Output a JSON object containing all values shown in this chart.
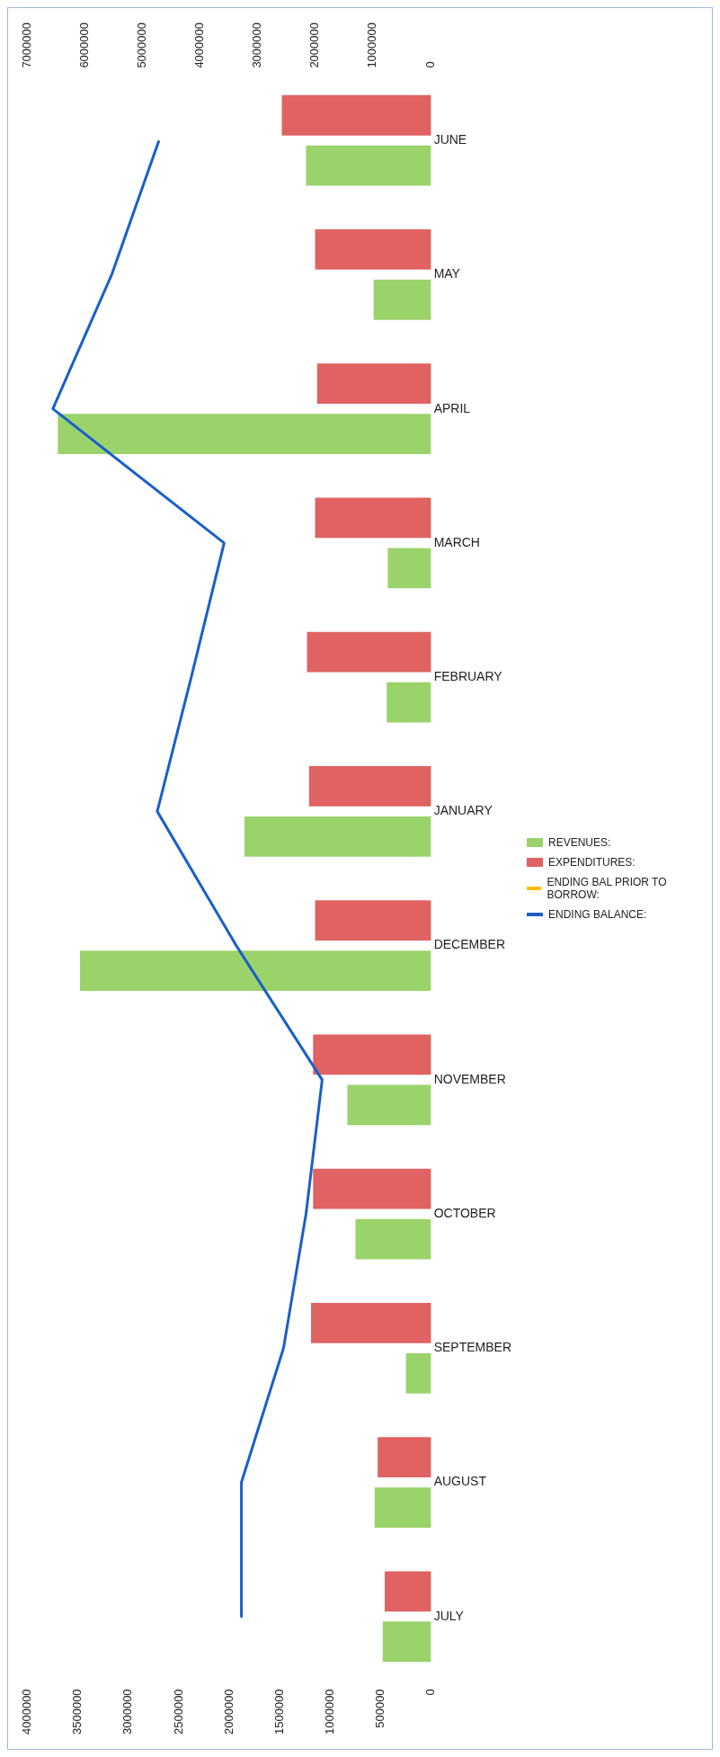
{
  "chart_data": {
    "type": "bar",
    "orientation": "horizontal",
    "categories": [
      "JUNE",
      "MAY",
      "APRIL",
      "MARCH",
      "FEBRUARY",
      "JANUARY",
      "DECEMBER",
      "NOVEMBER",
      "OCTOBER",
      "SEPTEMBER",
      "AUGUST",
      "JULY"
    ],
    "series": [
      {
        "name": "REVENUES:",
        "color": "#9bd36b",
        "values": [
          1240000,
          570000,
          3700000,
          430000,
          440000,
          1850000,
          3480000,
          830000,
          750000,
          250000,
          560000,
          480000
        ]
      },
      {
        "name": "EXPENDITURES:",
        "color": "#e06262",
        "values": [
          1480000,
          1150000,
          1130000,
          1150000,
          1230000,
          1210000,
          1150000,
          1170000,
          1170000,
          1190000,
          530000,
          460000
        ]
      },
      {
        "name": "ENDING BAL PRIOR TO BORROW:",
        "type": "line",
        "axis": "x2",
        "color": "#ffc000",
        "values": [
          null,
          null,
          null,
          null,
          null,
          null,
          null,
          null,
          null,
          null,
          null,
          null
        ]
      },
      {
        "name": "ENDING BALANCE:",
        "type": "line",
        "axis": "x2",
        "color": "#1a5fc9",
        "values": [
          4720000,
          5540000,
          6560000,
          3590000,
          4160000,
          4750000,
          3380000,
          1890000,
          2170000,
          2560000,
          3290000,
          3290000
        ]
      }
    ],
    "xlim": [
      4000000,
      0
    ],
    "xticks": [
      4000000,
      3500000,
      3000000,
      2500000,
      2000000,
      1500000,
      1000000,
      500000,
      0
    ],
    "x2lim": [
      7000000,
      0
    ],
    "x2ticks": [
      7000000,
      6000000,
      5000000,
      4000000,
      3000000,
      2000000,
      1000000,
      0
    ],
    "grid": false,
    "legend": "right",
    "marker": "none",
    "line_style": "solid"
  }
}
